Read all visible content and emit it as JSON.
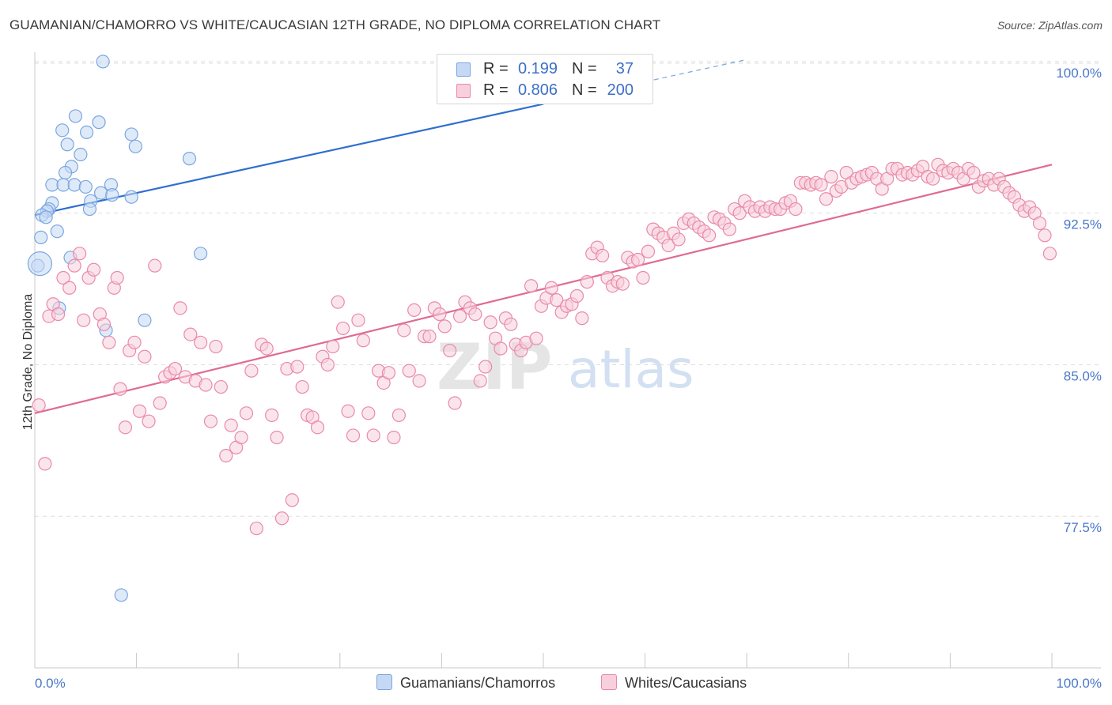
{
  "header": {
    "title": "GUAMANIAN/CHAMORRO VS WHITE/CAUCASIAN 12TH GRADE, NO DIPLOMA CORRELATION CHART",
    "source": "Source: ZipAtlas.com"
  },
  "legend": {
    "rows": [
      {
        "r_label": "R =",
        "r_value": "0.199",
        "n_label": "N =",
        "n_value": "37",
        "color": "#9fc0ee"
      },
      {
        "r_label": "R =",
        "r_value": "0.806",
        "n_label": "N =",
        "n_value": "200",
        "color": "#f4a8c0"
      }
    ]
  },
  "watermark": {
    "zip": "ZIP",
    "atlas": "atlas"
  },
  "chart_data": {
    "type": "scatter",
    "ylabel": "12th Grade, No Diploma",
    "xlabel": "",
    "x_tick_labels": [
      "0.0%",
      "100.0%"
    ],
    "y_tick_labels": [
      "100.0%",
      "92.5%",
      "85.0%",
      "77.5%"
    ],
    "y_ticks": [
      100.0,
      92.5,
      85.0,
      77.5
    ],
    "xlim": [
      0,
      100
    ],
    "ylim": [
      70.0,
      100.7
    ],
    "grid": true,
    "series": [
      {
        "name": "Guamanians/Chamorros",
        "color": "#7aa6e0",
        "fill": "#c5d9f4",
        "trend": {
          "x0": 0,
          "y0": 92.4,
          "x1": 50,
          "y1": 97.9,
          "dashed_to_x": 70,
          "dashed_to_y": 100.1
        },
        "points": [
          [
            6.7,
            100.0
          ],
          [
            4.0,
            97.3
          ],
          [
            6.3,
            97.0
          ],
          [
            2.7,
            96.6
          ],
          [
            5.1,
            96.5
          ],
          [
            9.5,
            96.4
          ],
          [
            3.2,
            95.9
          ],
          [
            9.9,
            95.8
          ],
          [
            4.5,
            95.4
          ],
          [
            15.2,
            95.2
          ],
          [
            3.6,
            94.8
          ],
          [
            3.0,
            94.5
          ],
          [
            1.7,
            93.9
          ],
          [
            2.8,
            93.9
          ],
          [
            3.9,
            93.9
          ],
          [
            7.5,
            93.9
          ],
          [
            5.0,
            93.8
          ],
          [
            6.5,
            93.5
          ],
          [
            7.6,
            93.4
          ],
          [
            9.5,
            93.3
          ],
          [
            5.5,
            93.1
          ],
          [
            1.7,
            93.0
          ],
          [
            1.4,
            92.7
          ],
          [
            1.2,
            92.6
          ],
          [
            5.4,
            92.7
          ],
          [
            0.7,
            92.4
          ],
          [
            1.1,
            92.3
          ],
          [
            2.2,
            91.6
          ],
          [
            0.6,
            91.3
          ],
          [
            16.3,
            90.5
          ],
          [
            3.5,
            90.3
          ],
          [
            0.3,
            89.9
          ],
          [
            2.4,
            87.8
          ],
          [
            10.8,
            87.2
          ],
          [
            7.0,
            86.7
          ],
          [
            8.5,
            73.6
          ],
          [
            0.5,
            90.0
          ]
        ],
        "sizes": {
          "default": 8,
          "large_index": 36,
          "large": 15
        }
      },
      {
        "name": "Whites/Caucasians",
        "color": "#e98aa8",
        "fill": "#f8cfdc",
        "trend": {
          "x0": 0,
          "y0": 82.6,
          "x1": 100,
          "y1": 94.9
        },
        "points": [
          [
            0.4,
            83.0
          ],
          [
            1.0,
            80.1
          ],
          [
            1.4,
            87.4
          ],
          [
            1.8,
            88.0
          ],
          [
            2.3,
            87.5
          ],
          [
            2.8,
            89.3
          ],
          [
            3.4,
            88.8
          ],
          [
            3.9,
            89.9
          ],
          [
            4.4,
            90.5
          ],
          [
            4.8,
            87.2
          ],
          [
            5.3,
            89.3
          ],
          [
            5.8,
            89.7
          ],
          [
            6.4,
            87.5
          ],
          [
            6.8,
            87.0
          ],
          [
            7.3,
            86.1
          ],
          [
            7.8,
            88.8
          ],
          [
            8.1,
            89.3
          ],
          [
            8.4,
            83.8
          ],
          [
            8.9,
            81.9
          ],
          [
            9.3,
            85.7
          ],
          [
            9.8,
            86.1
          ],
          [
            10.3,
            82.7
          ],
          [
            10.8,
            85.4
          ],
          [
            11.2,
            82.2
          ],
          [
            11.8,
            89.9
          ],
          [
            12.3,
            83.1
          ],
          [
            12.8,
            84.4
          ],
          [
            13.3,
            84.6
          ],
          [
            13.8,
            84.8
          ],
          [
            14.3,
            87.8
          ],
          [
            14.8,
            84.4
          ],
          [
            15.3,
            86.5
          ],
          [
            15.8,
            84.2
          ],
          [
            16.3,
            86.1
          ],
          [
            16.8,
            84.0
          ],
          [
            17.3,
            82.2
          ],
          [
            17.8,
            85.9
          ],
          [
            18.3,
            83.9
          ],
          [
            18.8,
            80.5
          ],
          [
            19.3,
            82.0
          ],
          [
            19.8,
            80.9
          ],
          [
            20.3,
            81.4
          ],
          [
            20.8,
            82.6
          ],
          [
            21.3,
            84.7
          ],
          [
            21.8,
            76.9
          ],
          [
            22.3,
            86.0
          ],
          [
            22.8,
            85.8
          ],
          [
            23.3,
            82.5
          ],
          [
            23.8,
            81.4
          ],
          [
            24.3,
            77.4
          ],
          [
            24.8,
            84.8
          ],
          [
            25.3,
            78.3
          ],
          [
            25.8,
            84.9
          ],
          [
            26.3,
            83.9
          ],
          [
            26.8,
            82.5
          ],
          [
            27.3,
            82.4
          ],
          [
            27.8,
            81.9
          ],
          [
            28.3,
            85.4
          ],
          [
            28.8,
            85.0
          ],
          [
            29.3,
            85.9
          ],
          [
            29.8,
            88.1
          ],
          [
            30.3,
            86.8
          ],
          [
            30.8,
            82.7
          ],
          [
            31.3,
            81.5
          ],
          [
            31.8,
            87.2
          ],
          [
            32.3,
            86.2
          ],
          [
            32.8,
            82.6
          ],
          [
            33.3,
            81.5
          ],
          [
            33.8,
            84.7
          ],
          [
            34.3,
            84.1
          ],
          [
            34.8,
            84.6
          ],
          [
            35.3,
            81.4
          ],
          [
            35.8,
            82.5
          ],
          [
            36.3,
            86.7
          ],
          [
            36.8,
            84.7
          ],
          [
            37.3,
            87.7
          ],
          [
            37.8,
            84.2
          ],
          [
            38.3,
            86.4
          ],
          [
            38.8,
            86.4
          ],
          [
            39.3,
            87.8
          ],
          [
            39.8,
            87.5
          ],
          [
            40.3,
            86.9
          ],
          [
            40.8,
            85.7
          ],
          [
            41.3,
            83.1
          ],
          [
            41.8,
            87.4
          ],
          [
            42.3,
            88.1
          ],
          [
            42.8,
            87.8
          ],
          [
            43.3,
            87.5
          ],
          [
            43.8,
            84.2
          ],
          [
            44.3,
            84.9
          ],
          [
            44.8,
            87.1
          ],
          [
            45.3,
            86.3
          ],
          [
            45.8,
            85.8
          ],
          [
            46.3,
            87.3
          ],
          [
            46.8,
            87.0
          ],
          [
            47.3,
            86.0
          ],
          [
            47.8,
            85.7
          ],
          [
            48.3,
            86.1
          ],
          [
            48.8,
            88.9
          ],
          [
            49.3,
            86.3
          ],
          [
            49.8,
            87.9
          ],
          [
            50.3,
            88.3
          ],
          [
            50.8,
            88.8
          ],
          [
            51.3,
            88.2
          ],
          [
            51.8,
            87.6
          ],
          [
            52.3,
            87.9
          ],
          [
            52.8,
            88.0
          ],
          [
            53.3,
            88.4
          ],
          [
            53.8,
            87.3
          ],
          [
            54.3,
            89.1
          ],
          [
            54.8,
            90.5
          ],
          [
            55.3,
            90.8
          ],
          [
            55.8,
            90.4
          ],
          [
            56.3,
            89.3
          ],
          [
            56.8,
            88.9
          ],
          [
            57.3,
            89.1
          ],
          [
            57.8,
            89.0
          ],
          [
            58.3,
            90.3
          ],
          [
            58.8,
            90.1
          ],
          [
            59.3,
            90.2
          ],
          [
            59.8,
            89.3
          ],
          [
            60.3,
            90.6
          ],
          [
            60.8,
            91.7
          ],
          [
            61.3,
            91.5
          ],
          [
            61.8,
            91.3
          ],
          [
            62.3,
            90.9
          ],
          [
            62.8,
            91.5
          ],
          [
            63.3,
            91.2
          ],
          [
            63.8,
            92.0
          ],
          [
            64.3,
            92.2
          ],
          [
            64.8,
            92.0
          ],
          [
            65.3,
            91.8
          ],
          [
            65.8,
            91.6
          ],
          [
            66.3,
            91.4
          ],
          [
            66.8,
            92.3
          ],
          [
            67.3,
            92.2
          ],
          [
            67.8,
            92.0
          ],
          [
            68.3,
            91.7
          ],
          [
            68.8,
            92.7
          ],
          [
            69.3,
            92.5
          ],
          [
            69.8,
            93.1
          ],
          [
            70.3,
            92.8
          ],
          [
            70.8,
            92.6
          ],
          [
            71.3,
            92.8
          ],
          [
            71.8,
            92.6
          ],
          [
            72.3,
            92.8
          ],
          [
            72.8,
            92.7
          ],
          [
            73.3,
            92.7
          ],
          [
            73.8,
            93.0
          ],
          [
            74.3,
            93.1
          ],
          [
            74.8,
            92.7
          ],
          [
            75.3,
            94.0
          ],
          [
            75.8,
            94.0
          ],
          [
            76.3,
            93.9
          ],
          [
            76.8,
            94.0
          ],
          [
            77.3,
            93.9
          ],
          [
            77.8,
            93.2
          ],
          [
            78.3,
            94.3
          ],
          [
            78.8,
            93.6
          ],
          [
            79.3,
            93.8
          ],
          [
            79.8,
            94.5
          ],
          [
            80.3,
            94.0
          ],
          [
            80.8,
            94.2
          ],
          [
            81.3,
            94.3
          ],
          [
            81.8,
            94.4
          ],
          [
            82.3,
            94.5
          ],
          [
            82.8,
            94.2
          ],
          [
            83.3,
            93.7
          ],
          [
            83.8,
            94.2
          ],
          [
            84.3,
            94.7
          ],
          [
            84.8,
            94.7
          ],
          [
            85.3,
            94.4
          ],
          [
            85.8,
            94.5
          ],
          [
            86.3,
            94.4
          ],
          [
            86.8,
            94.6
          ],
          [
            87.3,
            94.8
          ],
          [
            87.8,
            94.3
          ],
          [
            88.3,
            94.2
          ],
          [
            88.8,
            94.9
          ],
          [
            89.3,
            94.6
          ],
          [
            89.8,
            94.5
          ],
          [
            90.3,
            94.7
          ],
          [
            90.8,
            94.5
          ],
          [
            91.3,
            94.2
          ],
          [
            91.8,
            94.7
          ],
          [
            92.3,
            94.5
          ],
          [
            92.8,
            93.8
          ],
          [
            93.3,
            94.1
          ],
          [
            93.8,
            94.2
          ],
          [
            94.3,
            93.9
          ],
          [
            94.8,
            94.2
          ],
          [
            95.3,
            93.8
          ],
          [
            95.8,
            93.5
          ],
          [
            96.3,
            93.3
          ],
          [
            96.8,
            92.9
          ],
          [
            97.3,
            92.6
          ],
          [
            97.8,
            92.8
          ],
          [
            98.3,
            92.5
          ],
          [
            98.8,
            92.0
          ],
          [
            99.3,
            91.4
          ],
          [
            99.8,
            90.5
          ]
        ]
      }
    ]
  }
}
